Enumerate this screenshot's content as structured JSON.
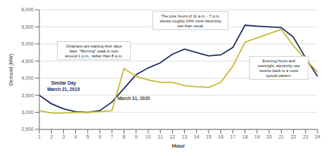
{
  "chart_data": {
    "type": "line",
    "x": [
      1,
      2,
      3,
      4,
      5,
      6,
      7,
      8,
      9,
      10,
      11,
      12,
      13,
      14,
      15,
      16,
      17,
      18,
      19,
      20,
      21,
      22,
      23,
      24
    ],
    "series": [
      {
        "name": "Similar Day\nMarch 21, 2019",
        "color": "#1e2d5e",
        "values": [
          3500,
          3250,
          3100,
          3020,
          3000,
          3050,
          3300,
          3700,
          4100,
          4300,
          4450,
          4700,
          4850,
          4750,
          4650,
          4680,
          4900,
          5550,
          5520,
          5500,
          5480,
          5200,
          4600,
          4050
        ]
      },
      {
        "name": "March 31, 2020",
        "color": "#c8b830",
        "values": [
          3050,
          2980,
          2980,
          3000,
          3000,
          3020,
          3050,
          4280,
          4050,
          3950,
          3880,
          3880,
          3780,
          3750,
          3730,
          3880,
          4350,
          5050,
          5180,
          5300,
          5430,
          4950,
          4550,
          4180
        ]
      }
    ],
    "xlabel": "Hour",
    "ylabel": "Demand (MW)",
    "xlim": [
      1,
      24
    ],
    "xticks": [
      1,
      2,
      3,
      4,
      5,
      6,
      7,
      8,
      9,
      10,
      11,
      12,
      13,
      14,
      15,
      16,
      17,
      18,
      19,
      20,
      21,
      22,
      23,
      24
    ],
    "ylim": [
      2500,
      6000
    ],
    "yticks": [
      {
        "value": 2500,
        "label": "2,500"
      },
      {
        "value": 3000,
        "label": "3,000"
      },
      {
        "value": 3500,
        "label": "3,500"
      },
      {
        "value": 4000,
        "label": "4,000"
      },
      {
        "value": 4500,
        "label": "4,500"
      },
      {
        "value": 5000,
        "label": "5,000"
      },
      {
        "value": 5500,
        "label": "5,500"
      },
      {
        "value": 6000,
        "label": "6,000"
      }
    ],
    "grid": true,
    "annotations": [
      "Ontarians are starting their days\nlater. \"Morning\" peak is now\naround 1 p.m., rather than 8 a.m.",
      "The core hours of 11 a.m. - 7 p.m.\nshows roughly 14% more electricity\nuse than usual.",
      "Evening hours and\novernight, electricity use\nreverts back to a more\ntypical pattern."
    ]
  }
}
